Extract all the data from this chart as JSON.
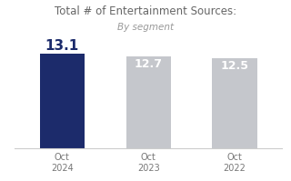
{
  "title": "Total # of Entertainment Sources:",
  "subtitle": "By segment",
  "categories": [
    "Oct\n2024",
    "Oct\n2023",
    "Oct\n2022"
  ],
  "values": [
    13.1,
    12.7,
    12.5
  ],
  "bar_colors": [
    "#1c2b6b",
    "#c5c7cc",
    "#c5c7cc"
  ],
  "value_labels": [
    "13.1",
    "12.7",
    "12.5"
  ],
  "label_colors_inside": [
    "#ffffff",
    "#ffffff",
    "#ffffff"
  ],
  "label_color_above": "#1c2b6b",
  "label_fontsize": 9,
  "label_above_fontsize": 11,
  "title_fontsize": 8.5,
  "subtitle_fontsize": 7.5,
  "ylim_min": 0,
  "ylim_max": 15.0,
  "background_color": "#ffffff",
  "bar_width": 0.52,
  "bottom_spine_color": "#cccccc",
  "tick_label_fontsize": 7.0,
  "tick_label_color": "#777777"
}
